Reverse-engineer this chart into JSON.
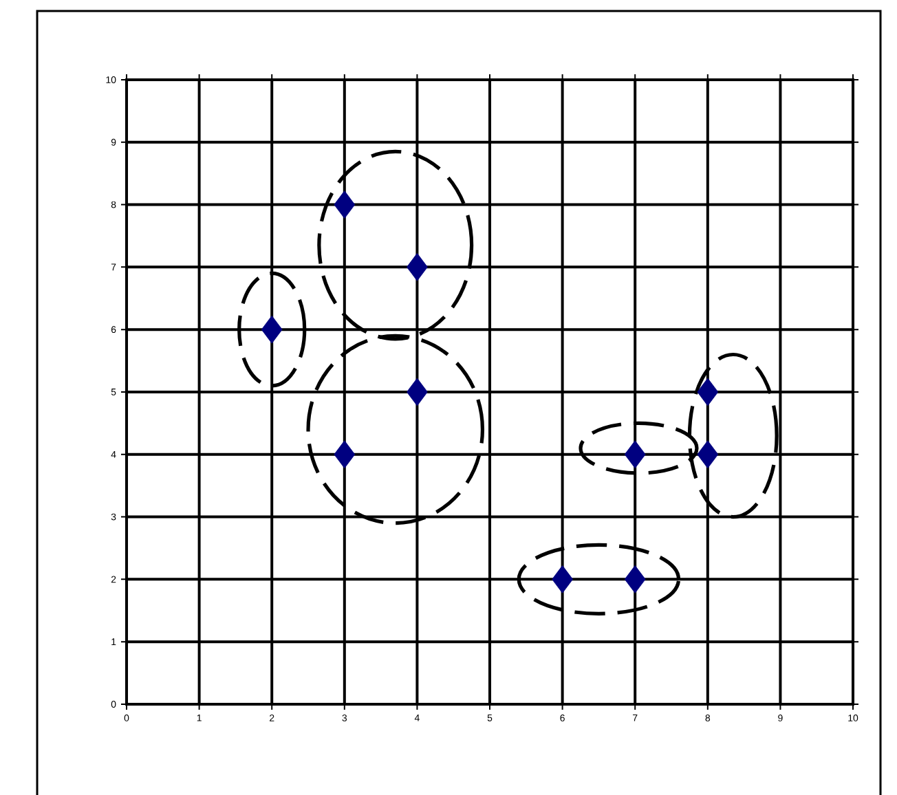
{
  "chart_data": {
    "type": "scatter",
    "x": [
      3,
      4,
      2,
      4,
      3,
      7,
      8,
      8,
      6,
      7
    ],
    "values": [
      8,
      7,
      6,
      5,
      4,
      4,
      5,
      4,
      2,
      2
    ],
    "color": "#000080",
    "marker": "diamond",
    "xlim": [
      0,
      10
    ],
    "ylim": [
      0,
      10
    ],
    "xticks": [
      0,
      1,
      2,
      3,
      4,
      5,
      6,
      7,
      8,
      9,
      10
    ],
    "yticks": [
      0,
      1,
      2,
      3,
      4,
      5,
      6,
      7,
      8,
      9,
      10
    ],
    "grid": true
  }
}
